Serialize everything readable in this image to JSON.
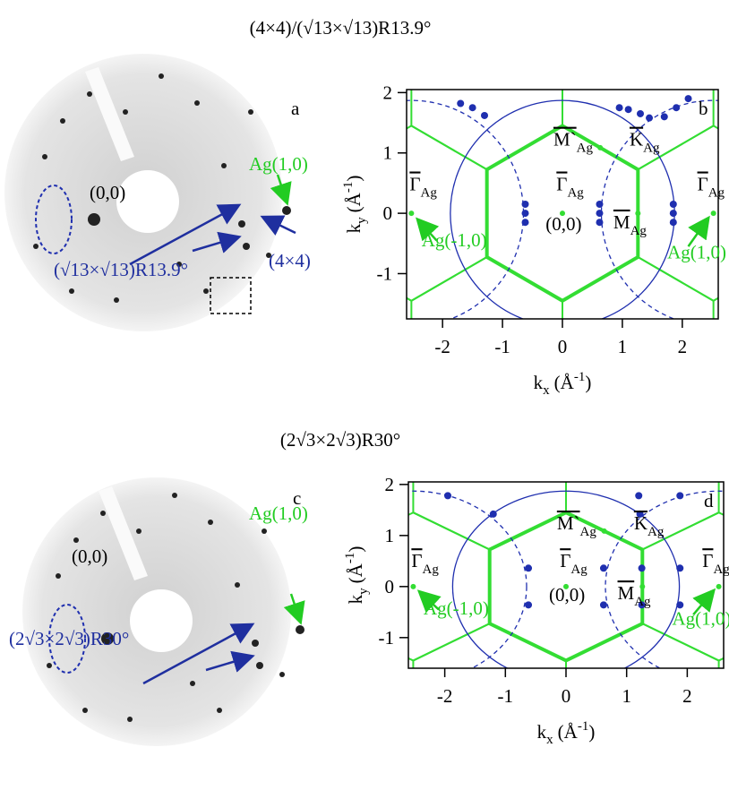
{
  "figure": [
    {
      "title": "(4×4)/(√13×√13)R13.9°",
      "leed": {
        "label": "a",
        "texts": [
          {
            "text": "Ag(1,0)",
            "color": "#22cc22"
          },
          {
            "text": "(0,0)",
            "color": "#000000"
          },
          {
            "text": "(√13×√13)R13.9°",
            "color": "#1f2f9f"
          },
          {
            "text": "(4×4)",
            "color": "#1f2f9f"
          }
        ]
      },
      "chart_data": {
        "type": "brillouin",
        "label": "b",
        "xlabel": {
          "k": "k",
          "sub": "x",
          "unit": "(Å",
          "sup": "-1",
          "close": ")"
        },
        "ylabel": {
          "k": "k",
          "sub": "y",
          "unit": "(Å",
          "sup": "-1",
          "close": ")"
        },
        "xlim": [
          -2.6,
          2.6
        ],
        "ylim": [
          -1.75,
          2.05
        ],
        "xticks": [
          -2,
          -1,
          0,
          1,
          2
        ],
        "yticks": [
          -1,
          0,
          1,
          2
        ],
        "zone": {
          "gamma_m": 1.26,
          "gamma_k": 1.45,
          "color": "#33dd33"
        },
        "circles": {
          "radius": 1.87,
          "color": "#1f2faf"
        },
        "spots_x": [
          -1.7,
          -1.5,
          -1.3,
          0.95,
          1.1,
          1.3,
          1.45,
          1.7,
          1.9,
          2.1,
          -0.62,
          -0.62,
          -0.62,
          0.62,
          0.62,
          0.62,
          1.85,
          1.85,
          1.85
        ],
        "spots_y": [
          1.82,
          1.75,
          1.62,
          1.75,
          1.72,
          1.65,
          1.58,
          1.6,
          1.75,
          1.9,
          0.15,
          0,
          -0.15,
          0.15,
          0,
          -0.15,
          0.15,
          0,
          -0.15
        ],
        "labels": [
          {
            "text": "Γ",
            "sub": "Ag",
            "bar": true,
            "color": "#000000"
          },
          {
            "text": "Ag(-1,0)",
            "color": "#22cc22"
          },
          {
            "text": "Γ",
            "sub": "Ag",
            "bar": true,
            "color": "#000000"
          },
          {
            "text": "(0,0)",
            "color": "#000000"
          },
          {
            "text": "M`",
            "sub": "Ag",
            "bar": true,
            "color": "#000000"
          },
          {
            "text": "K",
            "sub": "Ag",
            "bar": true,
            "color": "#000000"
          },
          {
            "text": "M",
            "sub": "Ag",
            "bar": true,
            "color": "#000000"
          },
          {
            "text": "Γ",
            "sub": "Ag",
            "bar": true,
            "color": "#000000"
          },
          {
            "text": "Ag(1,0)",
            "color": "#22cc22"
          }
        ]
      }
    },
    {
      "title": "(2√3×2√3)R30°",
      "leed": {
        "label": "c",
        "texts": [
          {
            "text": "Ag(1,0)",
            "color": "#22cc22"
          },
          {
            "text": "(0,0)",
            "color": "#000000"
          },
          {
            "text": "(2√3×2√3)R30°",
            "color": "#1f2f9f"
          }
        ]
      },
      "chart_data": {
        "type": "brillouin",
        "label": "d",
        "xlabel": {
          "k": "k",
          "sub": "x",
          "unit": "(Å",
          "sup": "-1",
          "close": ")"
        },
        "ylabel": {
          "k": "k",
          "sub": "y",
          "unit": "(Å",
          "sup": "-1",
          "close": ")"
        },
        "xlim": [
          -2.6,
          2.6
        ],
        "ylim": [
          -1.6,
          2.05
        ],
        "xticks": [
          -2,
          -1,
          0,
          1,
          2
        ],
        "yticks": [
          -1,
          0,
          1,
          2
        ],
        "zone": {
          "gamma_m": 1.26,
          "gamma_k": 1.45,
          "color": "#33dd33"
        },
        "circles": {
          "radius": 1.87,
          "color": "#1f2faf"
        },
        "spots_x": [
          -1.95,
          -1.2,
          1.2,
          1.22,
          1.88,
          -0.62,
          -0.62,
          0.62,
          0.62,
          1.25,
          1.25,
          1.88,
          1.88
        ],
        "spots_y": [
          1.78,
          1.42,
          1.78,
          1.42,
          1.78,
          0.36,
          -0.36,
          0.36,
          -0.36,
          0.36,
          -0.36,
          0.36,
          -0.36
        ],
        "labels": [
          {
            "text": "Γ",
            "sub": "Ag",
            "bar": true,
            "color": "#000000"
          },
          {
            "text": "Ag(-1,0)",
            "color": "#22cc22"
          },
          {
            "text": "Γ",
            "sub": "Ag",
            "bar": true,
            "color": "#000000"
          },
          {
            "text": "(0,0)",
            "color": "#000000"
          },
          {
            "text": "M`",
            "sub": "Ag",
            "bar": true,
            "color": "#000000"
          },
          {
            "text": "K",
            "sub": "Ag",
            "bar": true,
            "color": "#000000"
          },
          {
            "text": "M",
            "sub": "Ag",
            "bar": true,
            "color": "#000000"
          },
          {
            "text": "Γ",
            "sub": "Ag",
            "bar": true,
            "color": "#000000"
          },
          {
            "text": "Ag(1,0)",
            "color": "#22cc22"
          }
        ]
      }
    }
  ]
}
